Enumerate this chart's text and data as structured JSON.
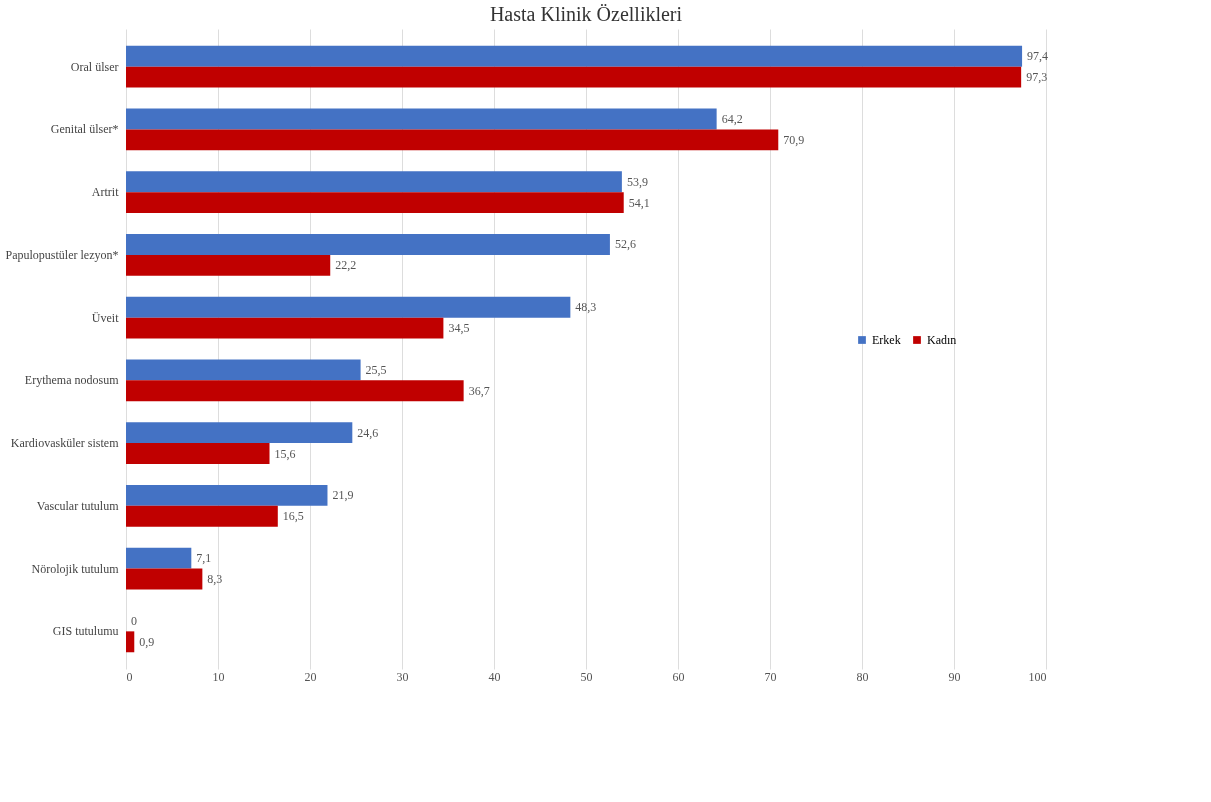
{
  "chart_data": {
    "type": "bar",
    "orientation": "horizontal",
    "title": "Hasta Klinik Özellikleri",
    "categories": [
      "Oral ülser",
      "Genital ülser*",
      "Artrit",
      "Papulopustüler lezyon*",
      "Üveit",
      "Erythema nodosum",
      "Kardiovasküler sistem",
      "Vascular tutulum",
      "Nörolojik tutulum",
      "GIS tutulumu"
    ],
    "series": [
      {
        "name": "Erkek",
        "color": "#4472c4",
        "values": [
          97.4,
          64.2,
          53.9,
          52.6,
          48.3,
          25.5,
          24.6,
          21.9,
          7.1,
          0
        ],
        "value_labels": [
          "97,4",
          "64,2",
          "53,9",
          "52,6",
          "48,3",
          "25,5",
          "24,6",
          "21,9",
          "7,1",
          "0"
        ]
      },
      {
        "name": "Kadın",
        "color": "#c00000",
        "values": [
          97.3,
          70.9,
          54.1,
          22.2,
          34.5,
          36.7,
          15.6,
          16.5,
          8.3,
          0.9
        ],
        "value_labels": [
          "97,3",
          "70,9",
          "54,1",
          "22,2",
          "34,5",
          "36,7",
          "15,6",
          "16,5",
          "8,3",
          "0,9"
        ]
      }
    ],
    "xlim": [
      0,
      100
    ],
    "xticks": [
      0,
      10,
      20,
      30,
      40,
      50,
      60,
      70,
      80,
      90,
      100
    ],
    "grid": "x",
    "legend": "right"
  }
}
